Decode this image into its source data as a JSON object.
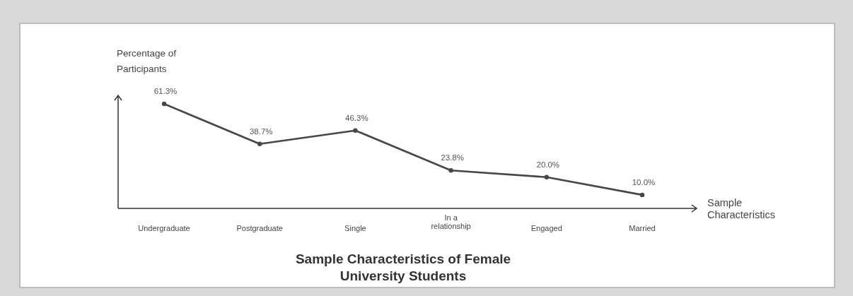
{
  "chart_data": {
    "type": "line",
    "title": "Sample Characteristics of Female University Students",
    "xlabel": "Sample Characteristics",
    "ylabel": "Percentage of Participants",
    "categories": [
      "Undergraduate",
      "Postgraduate",
      "Single",
      "In a relationship",
      "Engaged",
      "Married"
    ],
    "series": [
      {
        "color": "#474747",
        "values": [
          61.3,
          38.7,
          46.3,
          23.8,
          20.0,
          10.0
        ],
        "value_labels": [
          "61.3%",
          "38.7%",
          "46.3%",
          "23.8%",
          "20.0%",
          "10.0%"
        ]
      }
    ],
    "marker": "circle",
    "line_style": "solid"
  }
}
